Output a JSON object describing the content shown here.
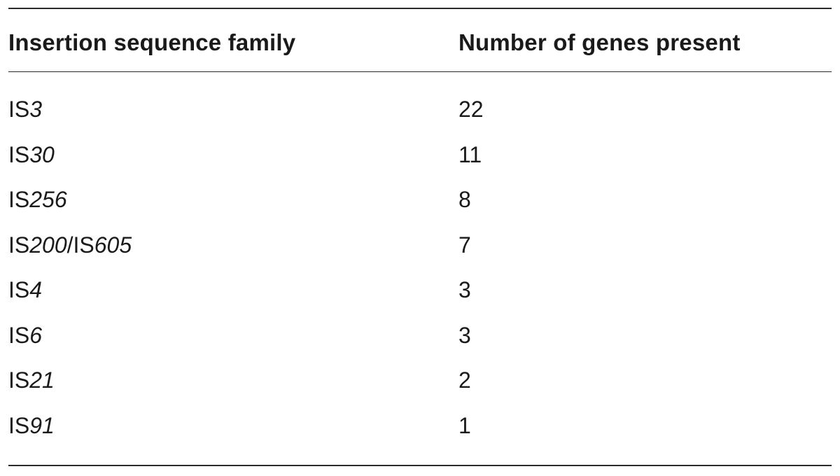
{
  "table": {
    "headers": {
      "family": "Insertion sequence family",
      "count": "Number of genes present"
    },
    "rows": [
      {
        "prefix": "IS",
        "num": "3",
        "prefix2": "",
        "num2": "",
        "count": "22"
      },
      {
        "prefix": "IS",
        "num": "30",
        "prefix2": "",
        "num2": "",
        "count": "11"
      },
      {
        "prefix": "IS",
        "num": "256",
        "prefix2": "",
        "num2": "",
        "count": "8"
      },
      {
        "prefix": "IS",
        "num": "200",
        "prefix2": "/IS",
        "num2": "605",
        "count": "7"
      },
      {
        "prefix": "IS",
        "num": "4",
        "prefix2": "",
        "num2": "",
        "count": "3"
      },
      {
        "prefix": "IS",
        "num": "6",
        "prefix2": "",
        "num2": "",
        "count": "3"
      },
      {
        "prefix": "IS",
        "num": "21",
        "prefix2": "",
        "num2": "",
        "count": "2"
      },
      {
        "prefix": "IS",
        "num": "91",
        "prefix2": "",
        "num2": "",
        "count": "1"
      }
    ]
  }
}
